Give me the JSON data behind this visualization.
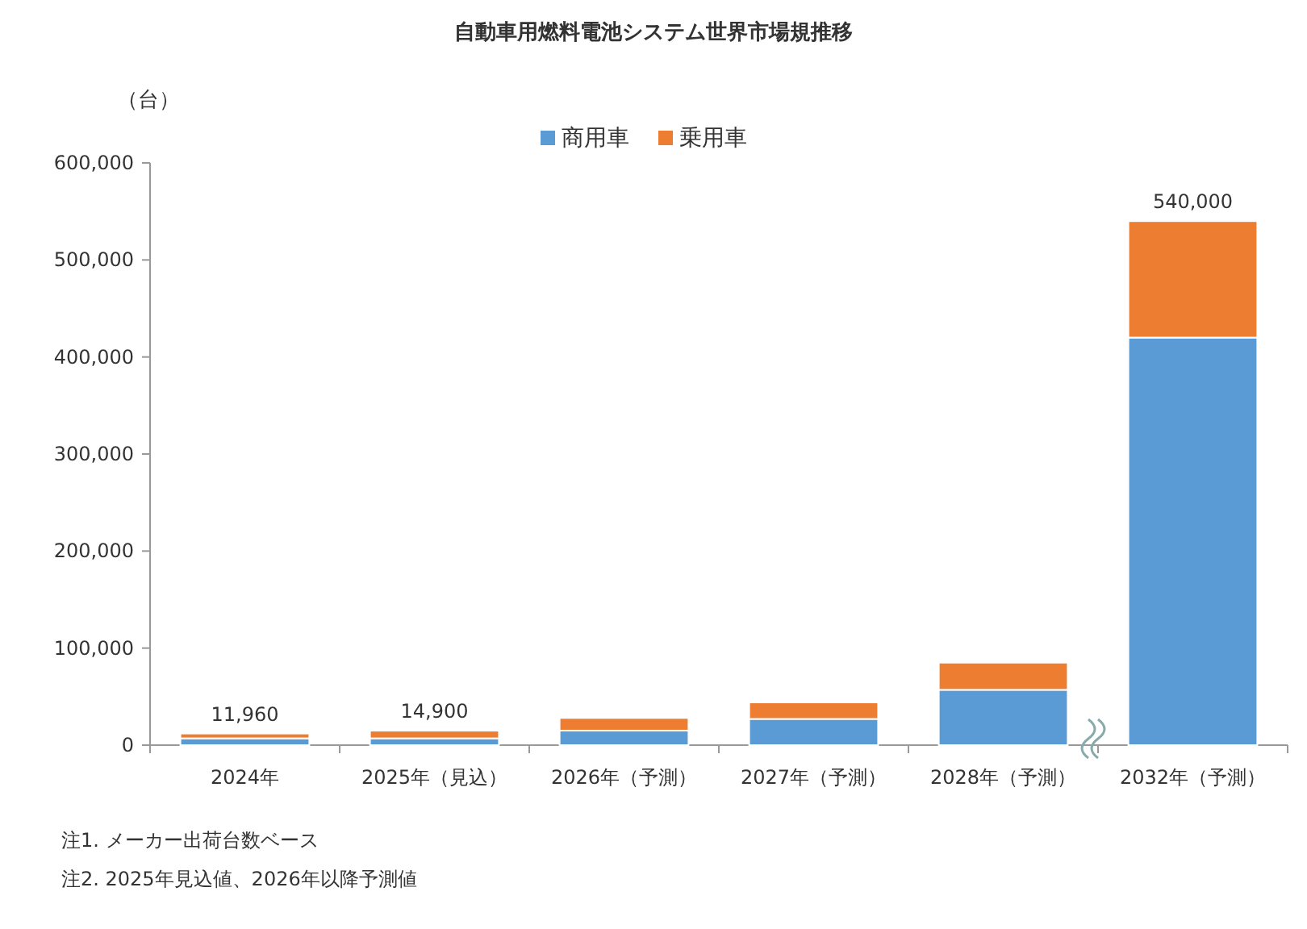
{
  "chart_data": {
    "type": "bar",
    "stacked": true,
    "title": "自動車用燃料電池システム世界市場規推移",
    "ylabel": "（台）",
    "categories": [
      "2024年",
      "2025年（見込）",
      "2026年（予測）",
      "2027年（予測）",
      "2028年（予測）",
      "2032年（予測）"
    ],
    "series": [
      {
        "name": "商用車",
        "color": "#5b9bd5",
        "values": [
          7000,
          7000,
          15000,
          27000,
          57000,
          420000
        ]
      },
      {
        "name": "乗用車",
        "color": "#ed7d31",
        "values": [
          4960,
          7900,
          13000,
          17000,
          28000,
          120000
        ]
      }
    ],
    "totals": [
      "11,960",
      "14,900",
      null,
      null,
      null,
      "540,000"
    ],
    "ylim": [
      0,
      600000
    ],
    "yticks": [
      {
        "value": 0,
        "label": "0"
      },
      {
        "value": 100000,
        "label": "100,000"
      },
      {
        "value": 200000,
        "label": "200,000"
      },
      {
        "value": 300000,
        "label": "300,000"
      },
      {
        "value": 400000,
        "label": "400,000"
      },
      {
        "value": 500000,
        "label": "500,000"
      },
      {
        "value": 600000,
        "label": "600,000"
      }
    ],
    "legend": "top",
    "grid": false,
    "annotations": [
      "注1. メーカー出荷台数ベース",
      "注2. 2025年見込値、2026年以降予測値"
    ]
  }
}
